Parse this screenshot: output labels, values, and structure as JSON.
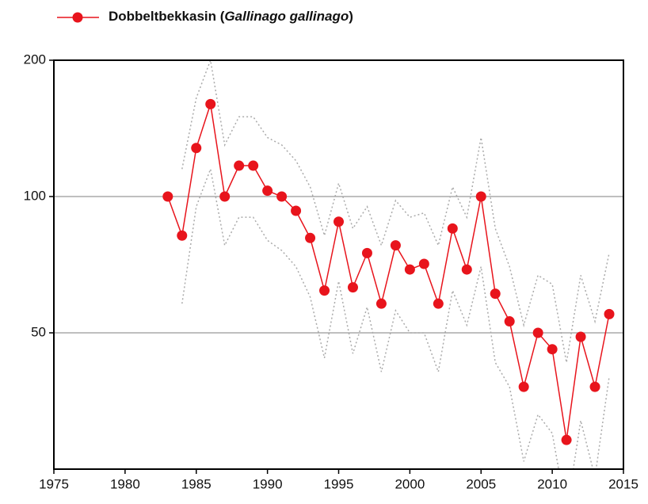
{
  "chart_data": {
    "type": "line",
    "x": [
      1983,
      1984,
      1985,
      1986,
      1987,
      1988,
      1989,
      1990,
      1991,
      1992,
      1993,
      1994,
      1995,
      1996,
      1997,
      1998,
      1999,
      2000,
      2001,
      2002,
      2003,
      2004,
      2005,
      2006,
      2007,
      2008,
      2009,
      2010,
      2011,
      2012,
      2013,
      2014
    ],
    "series": [
      {
        "name": "Dobbeltbekkasin (Gallinago gallinago)",
        "color": "#e8141c",
        "values": [
          100,
          82,
          128,
          160,
          100,
          117,
          117,
          103,
          100,
          93,
          81,
          62,
          88,
          63,
          75,
          58,
          78,
          69,
          71,
          58,
          85,
          69,
          100,
          61,
          53,
          38,
          50,
          46,
          29,
          49,
          38,
          55
        ]
      },
      {
        "color": "#aaaaaa",
        "values": [
          null,
          115,
          165,
          200,
          130,
          150,
          150,
          135,
          130,
          120,
          105,
          82,
          107,
          85,
          95,
          78,
          98,
          90,
          92,
          78,
          105,
          90,
          135,
          85,
          70,
          52,
          67,
          64,
          43,
          67,
          53,
          75
        ]
      },
      {
        "color": "#aaaaaa",
        "values": [
          null,
          58,
          95,
          115,
          78,
          90,
          90,
          80,
          76,
          70,
          60,
          44,
          65,
          45,
          57,
          41,
          56,
          50,
          50,
          41,
          62,
          52,
          70,
          43,
          38,
          26,
          33,
          30,
          20,
          32,
          24,
          40
        ]
      }
    ],
    "xlim": [
      1975,
      2015
    ],
    "xticks": [
      1975,
      1980,
      1985,
      1990,
      1995,
      2000,
      2005,
      2010,
      2015
    ],
    "ylim": [
      25,
      200
    ],
    "yticks": [
      50,
      100,
      200
    ],
    "log_y": true,
    "grid": true,
    "legend": "top left"
  }
}
